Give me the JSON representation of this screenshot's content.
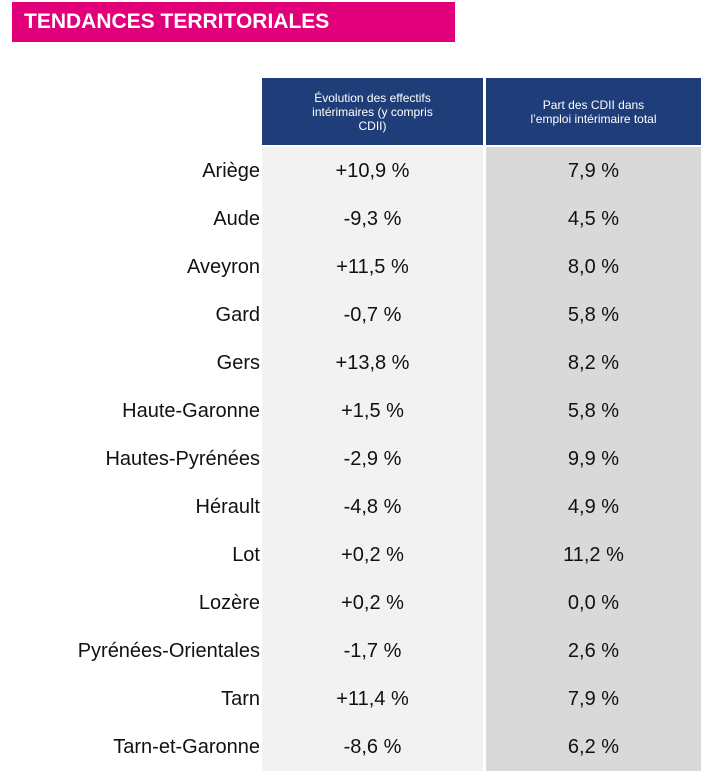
{
  "header": {
    "title": "TENDANCES TERRITORIALES"
  },
  "table": {
    "columns": [
      "Évolution des effectifs intérimaires (y compris CDII)",
      "Part des CDII dans l’emploi intérimaire total"
    ],
    "rows": [
      [
        "Ariège",
        "+10,9 %",
        "7,9 %"
      ],
      [
        "Aude",
        "-9,3 %",
        "4,5 %"
      ],
      [
        "Aveyron",
        "+11,5 %",
        "8,0 %"
      ],
      [
        "Gard",
        "-0,7 %",
        "5,8 %"
      ],
      [
        "Gers",
        "+13,8 %",
        "8,2 %"
      ],
      [
        "Haute-Garonne",
        "+1,5 %",
        "5,8 %"
      ],
      [
        "Hautes-Pyrénées",
        "-2,9 %",
        "9,9 %"
      ],
      [
        "Hérault",
        "-4,8 %",
        "4,9 %"
      ],
      [
        "Lot",
        "+0,2 %",
        "11,2 %"
      ],
      [
        "Lozère",
        "+0,2 %",
        "0,0 %"
      ],
      [
        "Pyrénées-Orientales",
        "-1,7 %",
        "2,6 %"
      ],
      [
        "Tarn",
        "+11,4 %",
        "7,9 %"
      ],
      [
        "Tarn-et-Garonne",
        "-8,6 %",
        "6,2 %"
      ]
    ]
  }
}
